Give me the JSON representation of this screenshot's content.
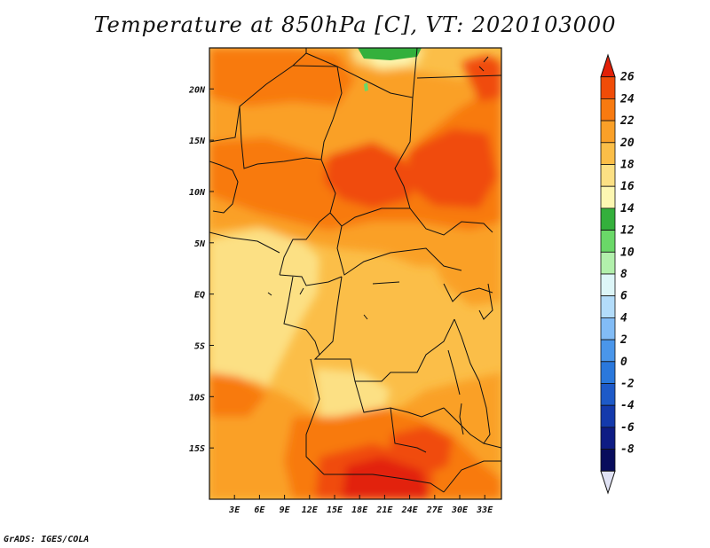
{
  "title": "Temperature at 850hPa [C], VT: 2020103000",
  "credit": "GrADS: IGES/COLA",
  "map": {
    "lon_range": [
      0,
      35
    ],
    "lat_range": [
      -20,
      24
    ],
    "x_ticks": [
      {
        "value": 3,
        "label": "3E"
      },
      {
        "value": 6,
        "label": "6E"
      },
      {
        "value": 9,
        "label": "9E"
      },
      {
        "value": 12,
        "label": "12E"
      },
      {
        "value": 15,
        "label": "15E"
      },
      {
        "value": 18,
        "label": "18E"
      },
      {
        "value": 21,
        "label": "21E"
      },
      {
        "value": 24,
        "label": "24E"
      },
      {
        "value": 27,
        "label": "27E"
      },
      {
        "value": 30,
        "label": "30E"
      },
      {
        "value": 33,
        "label": "33E"
      }
    ],
    "y_ticks": [
      {
        "value": 20,
        "label": "20N"
      },
      {
        "value": 15,
        "label": "15N"
      },
      {
        "value": 10,
        "label": "10N"
      },
      {
        "value": 5,
        "label": "5N"
      },
      {
        "value": 0,
        "label": "EQ"
      },
      {
        "value": -5,
        "label": "5S"
      },
      {
        "value": -10,
        "label": "10S"
      },
      {
        "value": -15,
        "label": "15S"
      }
    ]
  },
  "colorbar": {
    "levels": [
      {
        "label": "26"
      },
      {
        "label": "24"
      },
      {
        "label": "22"
      },
      {
        "label": "20"
      },
      {
        "label": "18"
      },
      {
        "label": "16"
      },
      {
        "label": "14"
      },
      {
        "label": "12"
      },
      {
        "label": "10"
      },
      {
        "label": "8"
      },
      {
        "label": "6"
      },
      {
        "label": "4"
      },
      {
        "label": "2"
      },
      {
        "label": "0"
      },
      {
        "label": "-2"
      },
      {
        "label": "-4"
      },
      {
        "label": "-6"
      },
      {
        "label": "-8"
      }
    ],
    "colors": [
      "#e22008",
      "#f04c08",
      "#f87a10",
      "#faa028",
      "#fbbe48",
      "#fce084",
      "#fdf7b2",
      "#34b03c",
      "#6ad868",
      "#b2f0ac",
      "#ddf6f8",
      "#b3dcfa",
      "#82bcf6",
      "#4a96ea",
      "#2a78dc",
      "#1e5ac8",
      "#143aac",
      "#0e1c84",
      "#080c5c"
    ],
    "under_color": "#e0e2f4"
  }
}
